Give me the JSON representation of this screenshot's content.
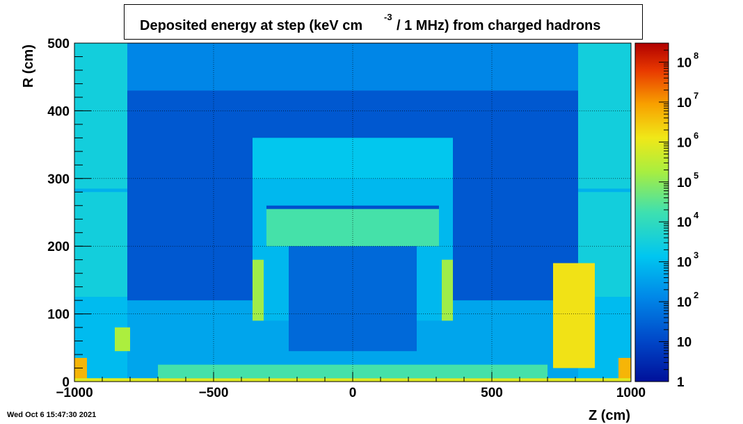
{
  "title": {
    "main": "Deposited energy at step (keV cm",
    "exp": "-3",
    "rest": "/ 1 MHz)  from   charged hadrons"
  },
  "timestamp": "Wed Oct  6 15:47:30 2021",
  "chart_data": {
    "type": "heatmap",
    "xlabel": "Z (cm)",
    "ylabel": "R (cm)",
    "xlim": [
      -1000,
      1000
    ],
    "ylim": [
      0,
      500
    ],
    "x_ticks": [
      -1000,
      -500,
      0,
      500,
      1000
    ],
    "x_tick_labels": [
      "−1000",
      "−500",
      "0",
      "500",
      "1000"
    ],
    "y_ticks": [
      0,
      100,
      200,
      300,
      400,
      500
    ],
    "y_tick_labels": [
      "0",
      "100",
      "200",
      "300",
      "400",
      "500"
    ],
    "grid": true,
    "colorbar": {
      "scale": "log",
      "range": [
        1,
        300000000
      ],
      "ticks": [
        1,
        10,
        100,
        1000,
        10000,
        100000,
        1000000,
        10000000,
        100000000
      ],
      "tick_labels": [
        {
          "base": "1",
          "exp": ""
        },
        {
          "base": "10",
          "exp": ""
        },
        {
          "base": "10",
          "exp": "2"
        },
        {
          "base": "10",
          "exp": "3"
        },
        {
          "base": "10",
          "exp": "4"
        },
        {
          "base": "10",
          "exp": "5"
        },
        {
          "base": "10",
          "exp": "6"
        },
        {
          "base": "10",
          "exp": "7"
        },
        {
          "base": "10",
          "exp": "8"
        }
      ]
    },
    "regions": [
      {
        "name": "background-outer",
        "z": [
          -1000,
          1000
        ],
        "r": [
          0,
          500
        ],
        "value": 400
      },
      {
        "name": "cavern-dark",
        "z": [
          -810,
          810
        ],
        "r": [
          120,
          430
        ],
        "value": 20
      },
      {
        "name": "upper-dark-band",
        "z": [
          -810,
          810
        ],
        "r": [
          430,
          500
        ],
        "value": 120
      },
      {
        "name": "endcap-left",
        "z": [
          -1000,
          -810
        ],
        "r": [
          125,
          500
        ],
        "value": 3000
      },
      {
        "name": "endcap-right",
        "z": [
          810,
          1000
        ],
        "r": [
          125,
          500
        ],
        "value": 3000
      },
      {
        "name": "left-top-strip",
        "z": [
          -1000,
          -810
        ],
        "r": [
          280,
          285
        ],
        "value": 600
      },
      {
        "name": "right-top-strip",
        "z": [
          810,
          1000
        ],
        "r": [
          280,
          285
        ],
        "value": 600
      },
      {
        "name": "forward-left",
        "z": [
          -1000,
          -810
        ],
        "r": [
          0,
          125
        ],
        "value": 900
      },
      {
        "name": "forward-right",
        "z": [
          810,
          1000
        ],
        "r": [
          0,
          125
        ],
        "value": 900
      },
      {
        "name": "detector-block",
        "z": [
          -360,
          360
        ],
        "r": [
          90,
          360
        ],
        "value": 800
      },
      {
        "name": "detector-shell-top",
        "z": [
          -360,
          360
        ],
        "r": [
          300,
          360
        ],
        "value": 1500
      },
      {
        "name": "barrel-ring",
        "z": [
          -310,
          310
        ],
        "r": [
          200,
          255
        ],
        "value": 20000
      },
      {
        "name": "barrel-ring-dark",
        "z": [
          -310,
          310
        ],
        "r": [
          255,
          260
        ],
        "value": 15
      },
      {
        "name": "inner-cavity",
        "z": [
          -230,
          230
        ],
        "r": [
          45,
          200
        ],
        "value": 40
      },
      {
        "name": "left-side-hot",
        "z": [
          -360,
          -320
        ],
        "r": [
          90,
          180
        ],
        "value": 150000
      },
      {
        "name": "right-side-hot",
        "z": [
          320,
          360
        ],
        "r": [
          90,
          180
        ],
        "value": 150000
      },
      {
        "name": "forward-right-hot",
        "z": [
          720,
          870
        ],
        "r": [
          20,
          175
        ],
        "value": 1500000
      },
      {
        "name": "forward-left-small",
        "z": [
          -855,
          -800
        ],
        "r": [
          45,
          80
        ],
        "value": 200000
      },
      {
        "name": "corner-left-hot",
        "z": [
          -1000,
          -955
        ],
        "r": [
          0,
          35
        ],
        "value": 5000000
      },
      {
        "name": "corner-right-hot",
        "z": [
          955,
          1000
        ],
        "r": [
          0,
          35
        ],
        "value": 5000000
      },
      {
        "name": "beam-line",
        "z": [
          -1000,
          1000
        ],
        "r": [
          0,
          5
        ],
        "value": 800000
      },
      {
        "name": "beam-pipe-low",
        "z": [
          -700,
          700
        ],
        "r": [
          5,
          25
        ],
        "value": 20000
      }
    ]
  }
}
